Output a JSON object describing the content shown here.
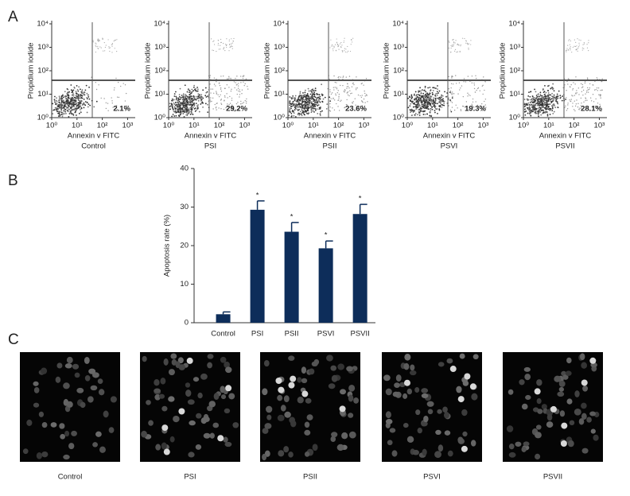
{
  "panel_labels": [
    "A",
    "B",
    "C"
  ],
  "chart_data": [
    {
      "type": "flow",
      "sample": "Control",
      "xlabel": "Annexin v FITC",
      "ylabel": "Propidium iodide",
      "xscale": "log",
      "yscale": "log",
      "xlim": [
        1,
        2000
      ],
      "ylim": [
        1,
        10000
      ],
      "xticks": [
        {
          "value": 1,
          "label": "10⁰"
        },
        {
          "value": 10,
          "label": "10¹"
        },
        {
          "value": 100,
          "label": "10²"
        },
        {
          "value": 1000,
          "label": "10³"
        }
      ],
      "yticks": [
        {
          "value": 1,
          "label": "10⁰"
        },
        {
          "value": 10,
          "label": "10¹"
        },
        {
          "value": 100,
          "label": "10²"
        },
        {
          "value": 1000,
          "label": "10³"
        },
        {
          "value": 10000,
          "label": "10⁴"
        }
      ],
      "values": [
        2.1
      ],
      "value_labels": [
        "2.1%"
      ]
    },
    {
      "type": "flow",
      "sample": "PSI",
      "xlabel": "Annexin v FITC",
      "ylabel": "Propidium iodide",
      "xscale": "log",
      "yscale": "log",
      "xlim": [
        1,
        2000
      ],
      "ylim": [
        1,
        10000
      ],
      "xticks": [
        {
          "value": 1,
          "label": "10⁰"
        },
        {
          "value": 10,
          "label": "10¹"
        },
        {
          "value": 100,
          "label": "10²"
        },
        {
          "value": 1000,
          "label": "10³"
        }
      ],
      "yticks": [
        {
          "value": 1,
          "label": "10⁰"
        },
        {
          "value": 10,
          "label": "10¹"
        },
        {
          "value": 100,
          "label": "10²"
        },
        {
          "value": 1000,
          "label": "10³"
        },
        {
          "value": 10000,
          "label": "10⁴"
        }
      ],
      "values": [
        29.2
      ],
      "value_labels": [
        "29.2%"
      ]
    },
    {
      "type": "flow",
      "sample": "PSII",
      "xlabel": "Annexin v FITC",
      "ylabel": "Propidium iodide",
      "xscale": "log",
      "yscale": "log",
      "xlim": [
        1,
        2000
      ],
      "ylim": [
        1,
        10000
      ],
      "xticks": [
        {
          "value": 1,
          "label": "10⁰"
        },
        {
          "value": 10,
          "label": "10¹"
        },
        {
          "value": 100,
          "label": "10²"
        },
        {
          "value": 1000,
          "label": "10³"
        }
      ],
      "yticks": [
        {
          "value": 1,
          "label": "10⁰"
        },
        {
          "value": 10,
          "label": "10¹"
        },
        {
          "value": 100,
          "label": "10²"
        },
        {
          "value": 1000,
          "label": "10³"
        },
        {
          "value": 10000,
          "label": "10⁴"
        }
      ],
      "values": [
        23.6
      ],
      "value_labels": [
        "23.6%"
      ]
    },
    {
      "type": "flow",
      "sample": "PSVI",
      "xlabel": "Annexin v FITC",
      "ylabel": "Propidium iodide",
      "xscale": "log",
      "yscale": "log",
      "xlim": [
        1,
        2000
      ],
      "ylim": [
        1,
        10000
      ],
      "xticks": [
        {
          "value": 1,
          "label": "10⁰"
        },
        {
          "value": 10,
          "label": "10¹"
        },
        {
          "value": 100,
          "label": "10²"
        },
        {
          "value": 1000,
          "label": "10³"
        }
      ],
      "yticks": [
        {
          "value": 1,
          "label": "10⁰"
        },
        {
          "value": 10,
          "label": "10¹"
        },
        {
          "value": 100,
          "label": "10²"
        },
        {
          "value": 1000,
          "label": "10³"
        },
        {
          "value": 10000,
          "label": "10⁴"
        }
      ],
      "values": [
        19.3
      ],
      "value_labels": [
        "19.3%"
      ]
    },
    {
      "type": "flow",
      "sample": "PSVII",
      "xlabel": "Annexin v FITC",
      "ylabel": "Propidium iodide",
      "xscale": "log",
      "yscale": "log",
      "xlim": [
        1,
        2000
      ],
      "ylim": [
        1,
        10000
      ],
      "xticks": [
        {
          "value": 1,
          "label": "10⁰"
        },
        {
          "value": 10,
          "label": "10¹"
        },
        {
          "value": 100,
          "label": "10²"
        },
        {
          "value": 1000,
          "label": "10³"
        }
      ],
      "yticks": [
        {
          "value": 1,
          "label": "10⁰"
        },
        {
          "value": 10,
          "label": "10¹"
        },
        {
          "value": 100,
          "label": "10²"
        },
        {
          "value": 1000,
          "label": "10³"
        },
        {
          "value": 10000,
          "label": "10⁴"
        }
      ],
      "values": [
        28.1
      ],
      "value_labels": [
        "28.1%"
      ]
    },
    {
      "type": "bar",
      "ylabel": "Apoptosis rate (%)",
      "categories": [
        "Control",
        "PSI",
        "PSII",
        "PSVI",
        "PSVII"
      ],
      "values": [
        2.2,
        29.3,
        23.6,
        19.3,
        28.2
      ],
      "errors": [
        0.6,
        2.3,
        2.4,
        1.9,
        2.5
      ],
      "significance": [
        null,
        "*",
        "*",
        "*",
        "*"
      ],
      "color": "#0d2d5a",
      "ylim": [
        0,
        40
      ],
      "yticks": [
        0,
        10,
        20,
        30,
        40
      ]
    }
  ],
  "images": {
    "captions": [
      "Control",
      "PSI",
      "PSII",
      "PSVI",
      "PSVII"
    ]
  }
}
